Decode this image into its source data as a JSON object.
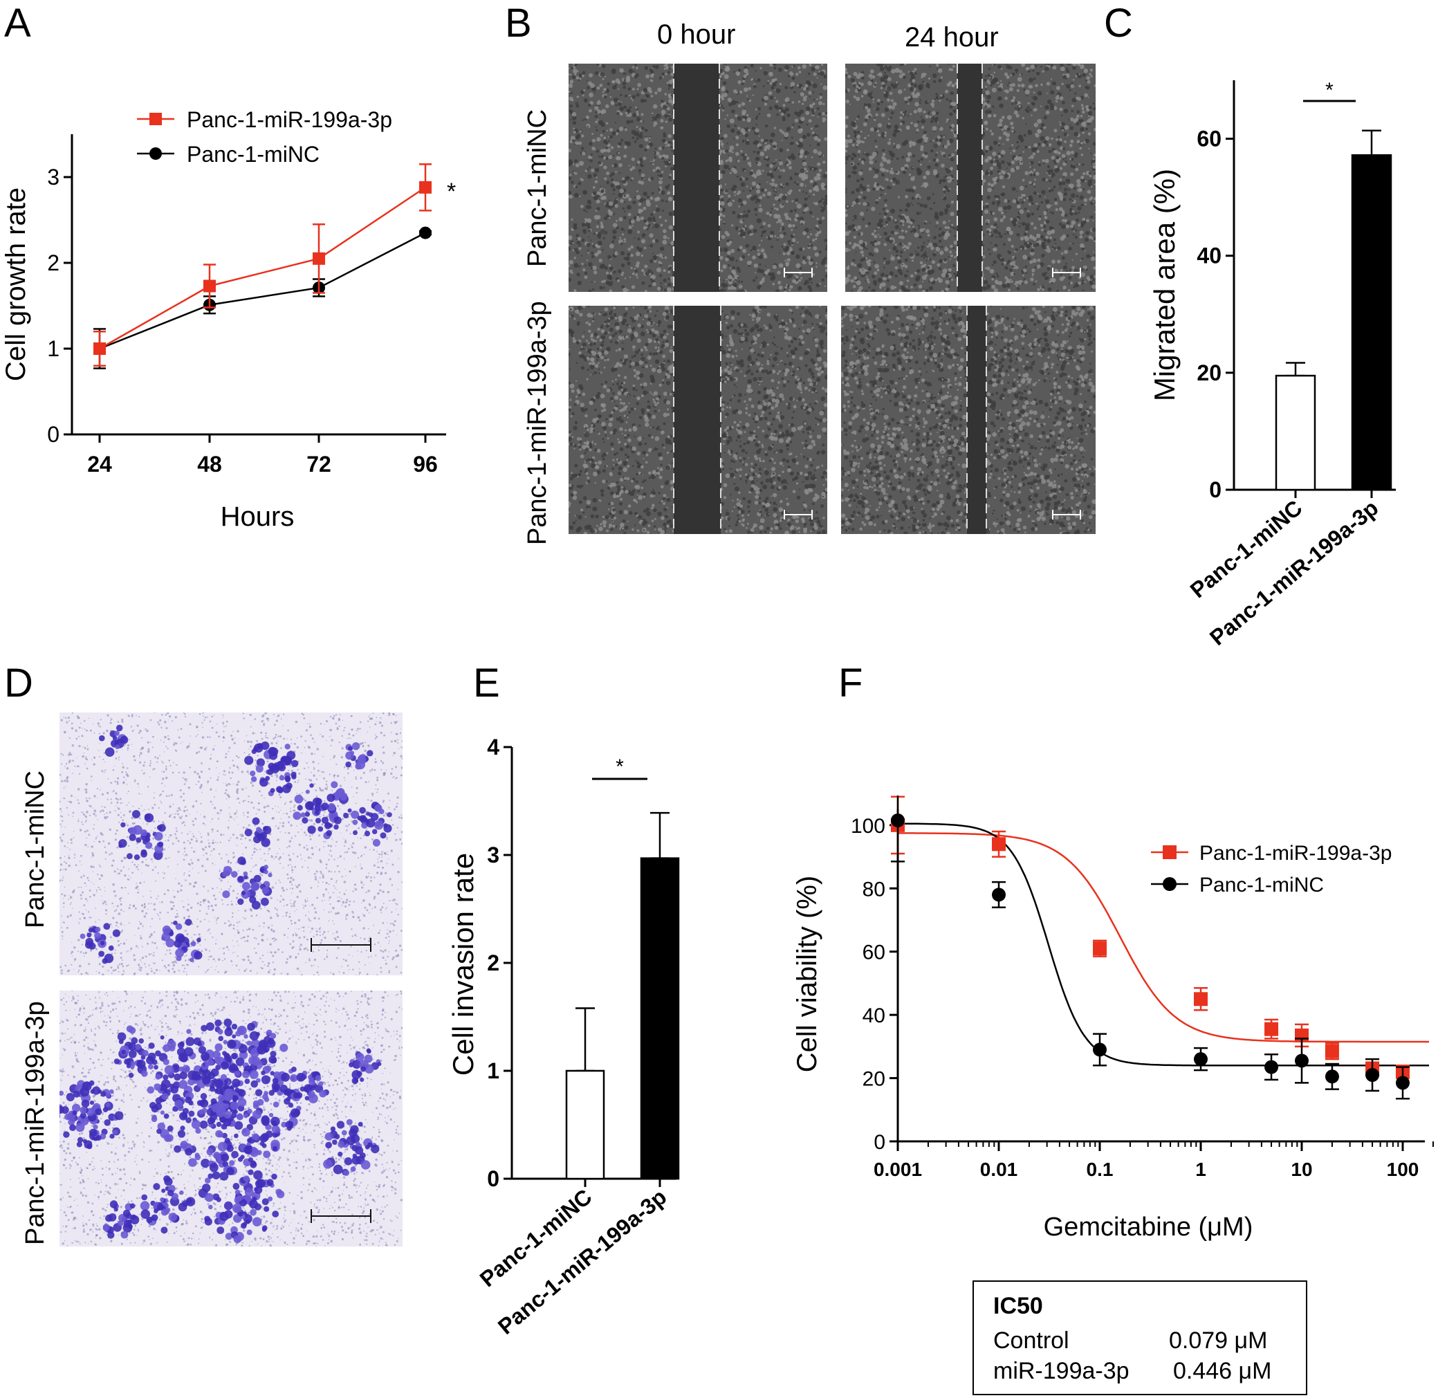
{
  "panels": {
    "a": "A",
    "b": "B",
    "c": "C",
    "d": "D",
    "e": "E",
    "f": "F"
  },
  "colors": {
    "red": "#e8321e",
    "black": "#000000",
    "purple": "#4a3cc0",
    "gray_bg": "#5f5f5f"
  },
  "chart_data": [
    {
      "id": "A",
      "type": "line",
      "xlabel": "Hours",
      "ylabel": "Cell growth rate",
      "x": [
        24,
        48,
        72,
        96
      ],
      "x_ticks": [
        "24",
        "48",
        "72",
        "96"
      ],
      "ylim": [
        0,
        3.5
      ],
      "y_ticks": [
        "0",
        "1",
        "2",
        "3"
      ],
      "legend_position": "top-left",
      "series": [
        {
          "name": "Panc-1-miR-199a-3p",
          "color": "#e8321e",
          "marker": "square",
          "values": [
            1.0,
            1.73,
            2.05,
            2.88
          ],
          "errors": [
            0.2,
            0.25,
            0.4,
            0.27
          ]
        },
        {
          "name": "Panc-1-miNC",
          "color": "#000000",
          "marker": "circle",
          "values": [
            1.0,
            1.51,
            1.71,
            2.35
          ],
          "errors": [
            0.23,
            0.1,
            0.1,
            0.02
          ]
        }
      ],
      "annotation": "*"
    },
    {
      "id": "C",
      "type": "bar",
      "ylabel": "Migrated area (%)",
      "categories": [
        "Panc-1-miNC",
        "Panc-1-miR-199a-3p"
      ],
      "values": [
        19.5,
        57.2
      ],
      "errors": [
        2.2,
        4.2
      ],
      "fills": [
        "#ffffff",
        "#000000"
      ],
      "ylim": [
        0,
        70
      ],
      "y_ticks": [
        "0",
        "20",
        "40",
        "60"
      ],
      "annotation": "*"
    },
    {
      "id": "E",
      "type": "bar",
      "ylabel": "Cell invasion rate",
      "categories": [
        "Panc-1-miNC",
        "Panc-1-miR-199a-3p"
      ],
      "values": [
        1.0,
        2.97
      ],
      "errors": [
        0.58,
        0.42
      ],
      "fills": [
        "#ffffff",
        "#000000"
      ],
      "ylim": [
        0,
        4
      ],
      "y_ticks": [
        "0",
        "1",
        "2",
        "3",
        "4"
      ],
      "annotation": "*"
    },
    {
      "id": "F",
      "type": "scatter",
      "xscale": "log",
      "xlabel": "Gemcitabine (μM)",
      "ylabel": "Cell viability (%)",
      "xlim": [
        0.001,
        200
      ],
      "x_ticks": [
        "0.001",
        "0.01",
        "0.1",
        "1",
        "10",
        "100"
      ],
      "ylim": [
        0,
        105
      ],
      "y_ticks": [
        "0",
        "20",
        "40",
        "60",
        "80",
        "100"
      ],
      "legend_position": "top-right",
      "x": [
        0.001,
        0.01,
        0.1,
        1,
        5,
        10,
        20,
        50,
        100
      ],
      "series": [
        {
          "name": "Panc-1-miR-199a-3p",
          "color": "#e8321e",
          "marker": "square",
          "values": [
            100,
            94,
            61,
            45,
            35.5,
            33.5,
            28.5,
            23,
            22
          ],
          "errors": [
            9,
            4,
            2.5,
            3.5,
            3,
            3.5,
            2.5,
            2,
            2
          ],
          "fit": {
            "top": 97.5,
            "bottom": 31.5,
            "ic50": 0.16,
            "hill": 1.6
          }
        },
        {
          "name": "Panc-1-miNC",
          "color": "#000000",
          "marker": "circle",
          "values": [
            101.5,
            78,
            29,
            26,
            23.5,
            25.5,
            20.5,
            21,
            18.5
          ],
          "errors": [
            13,
            4,
            5,
            3.5,
            4,
            7,
            4,
            5,
            5
          ],
          "fit": {
            "top": 100.5,
            "bottom": 24,
            "ic50": 0.031,
            "hill": 2.4
          }
        }
      ]
    }
  ],
  "scratch": {
    "col_0h": "0 hour",
    "col_24h": "24 hour",
    "row_nc": "Panc-1-miNC",
    "row_mir": "Panc-1-miR-199a-3p"
  },
  "invasion": {
    "row_nc": "Panc-1-miNC",
    "row_mir": "Panc-1-miR-199a-3p"
  },
  "ic50": {
    "title": "IC50",
    "rows": [
      {
        "label": "Control",
        "value": "0.079 μM"
      },
      {
        "label": "miR-199a-3p",
        "value": "0.446 μM"
      }
    ]
  }
}
